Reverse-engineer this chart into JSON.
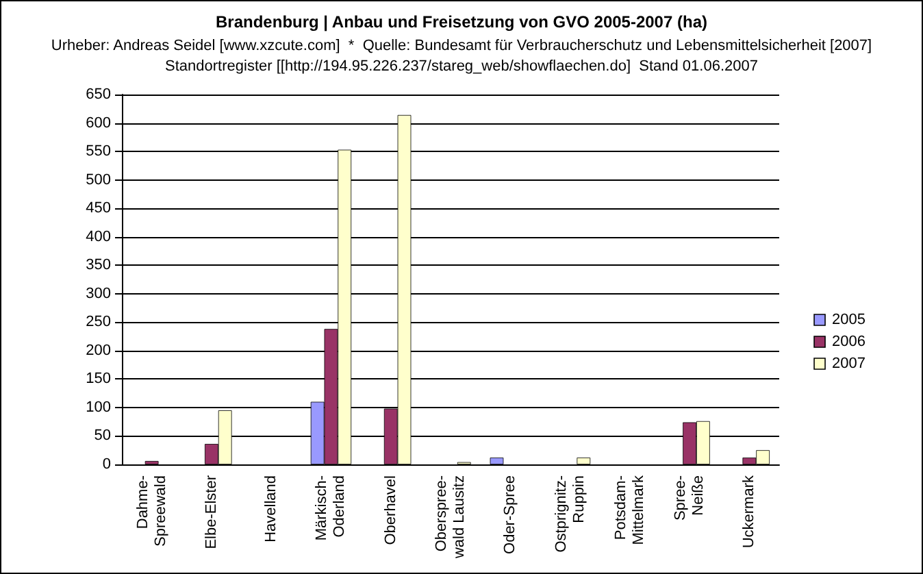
{
  "chart_data": {
    "type": "bar",
    "title": "Brandenburg | Anbau und Freisetzung von GVO 2005-2007 (ha)",
    "subtitle": "Urheber: Andreas Seidel [www.xzcute.com]  *  Quelle: Bundesamt für Verbraucherschutz und Lebensmittelsicherheit [2007]\nStandortregister [[http://194.95.226.237/stareg_web/showflaechen.do]  Stand 01.06.2007",
    "categories": [
      "Dahme-\nSpreewald",
      "Elbe-Elster",
      "Havelland",
      "Märkisch-\nOderland",
      "Oberhavel",
      "Oberspree-\nwald Lausitz",
      "Oder-Spree",
      "Ostprignitz-\nRuppin",
      "Potsdam-\nMittelmark",
      "Spree-\nNeiße",
      "Uckermark"
    ],
    "series": [
      {
        "name": "2005",
        "color": "#9999ff",
        "values": [
          null,
          null,
          null,
          110,
          null,
          null,
          12,
          null,
          0,
          null,
          null
        ]
      },
      {
        "name": "2006",
        "color": "#993366",
        "values": [
          6,
          36,
          null,
          238,
          98,
          null,
          null,
          null,
          0,
          74,
          12
        ]
      },
      {
        "name": "2007",
        "color": "#ffffcc",
        "values": [
          null,
          95,
          0,
          553,
          614,
          4,
          null,
          12,
          0,
          76,
          25
        ]
      }
    ],
    "ylim": [
      0,
      650
    ],
    "yticks": [
      0,
      50,
      100,
      150,
      200,
      250,
      300,
      350,
      400,
      450,
      500,
      550,
      600,
      650
    ],
    "grid": "y",
    "legend": "right"
  }
}
